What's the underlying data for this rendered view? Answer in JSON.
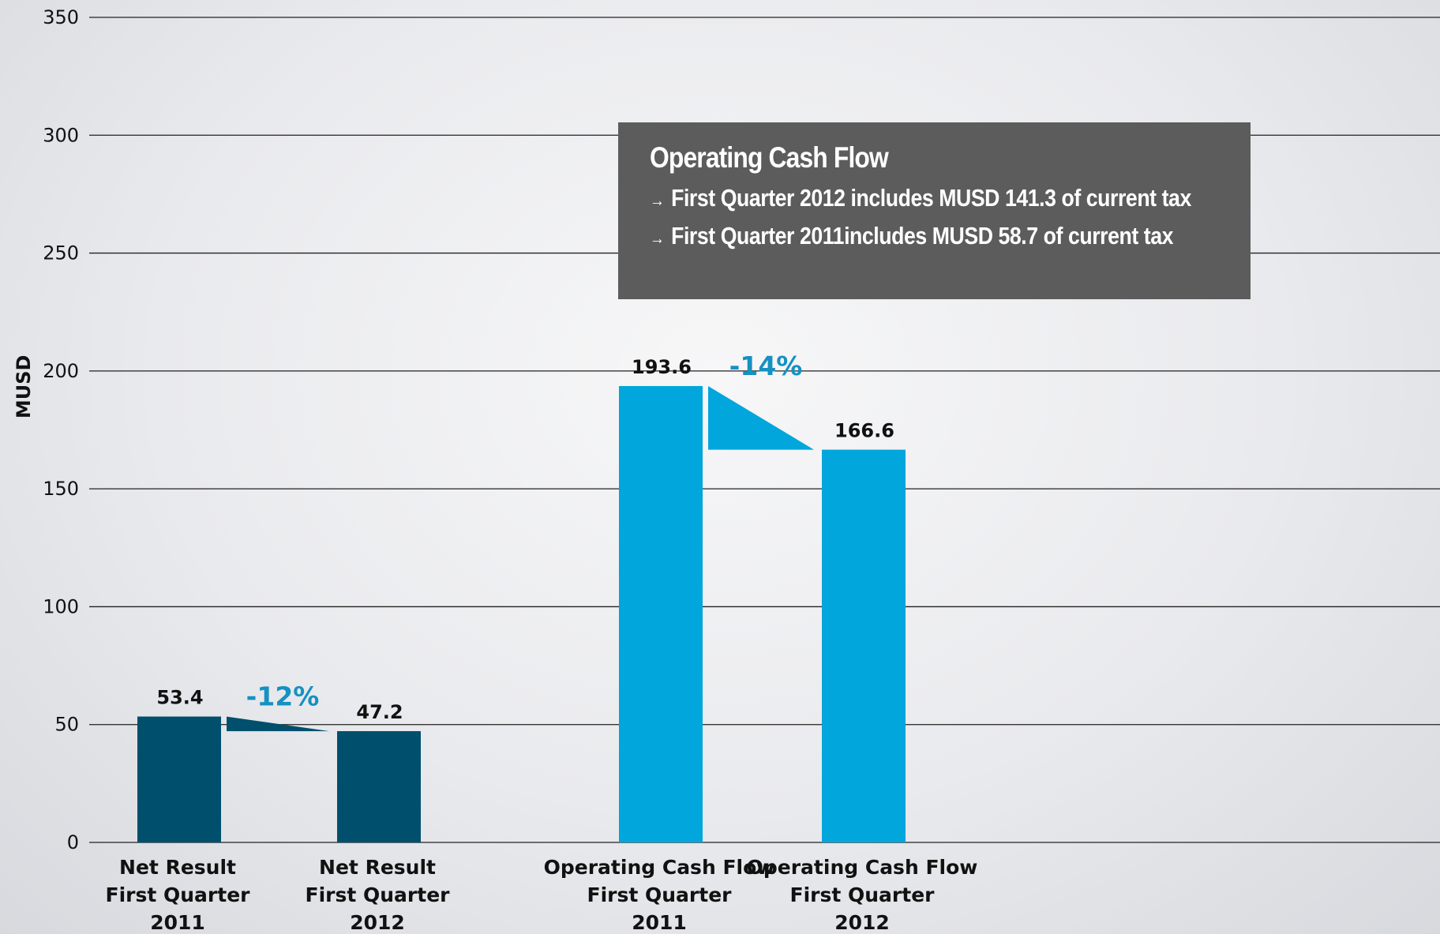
{
  "chart_data": {
    "type": "bar",
    "ylabel": "MUSD",
    "xlabel": "",
    "ylim": [
      0,
      350
    ],
    "yticks": [
      0,
      50,
      100,
      150,
      200,
      250,
      300,
      350
    ],
    "grid": true,
    "categories": [
      [
        "Net Result",
        "First Quarter",
        "2011"
      ],
      [
        "Net Result",
        "First Quarter",
        "2012"
      ],
      [
        "Operating Cash Flow",
        "First Quarter",
        "2011"
      ],
      [
        "Operating Cash Flow",
        "First Quarter",
        "2012"
      ]
    ],
    "values": [
      53.4,
      47.2,
      193.6,
      166.6
    ],
    "value_labels": [
      "53.4",
      "47.2",
      "193.6",
      "166.6"
    ],
    "bar_colors": [
      "#004f6c",
      "#004f6c",
      "#00a6dc",
      "#00a6dc"
    ],
    "changes": [
      {
        "from": 0,
        "to": 1,
        "label": "-12%",
        "color": "#004f6c",
        "text_color": "#1591c2"
      },
      {
        "from": 2,
        "to": 3,
        "label": "-14%",
        "color": "#00a6dc",
        "text_color": "#1591c2"
      }
    ]
  },
  "infobox": {
    "title": "Operating Cash Flow",
    "items": [
      "First Quarter 2012 includes MUSD 141.3 of current tax",
      "First Quarter 2011includes MUSD 58.7 of current tax"
    ],
    "background": "#5c5c5c",
    "bullet_icon": "arrow-right-icon"
  }
}
